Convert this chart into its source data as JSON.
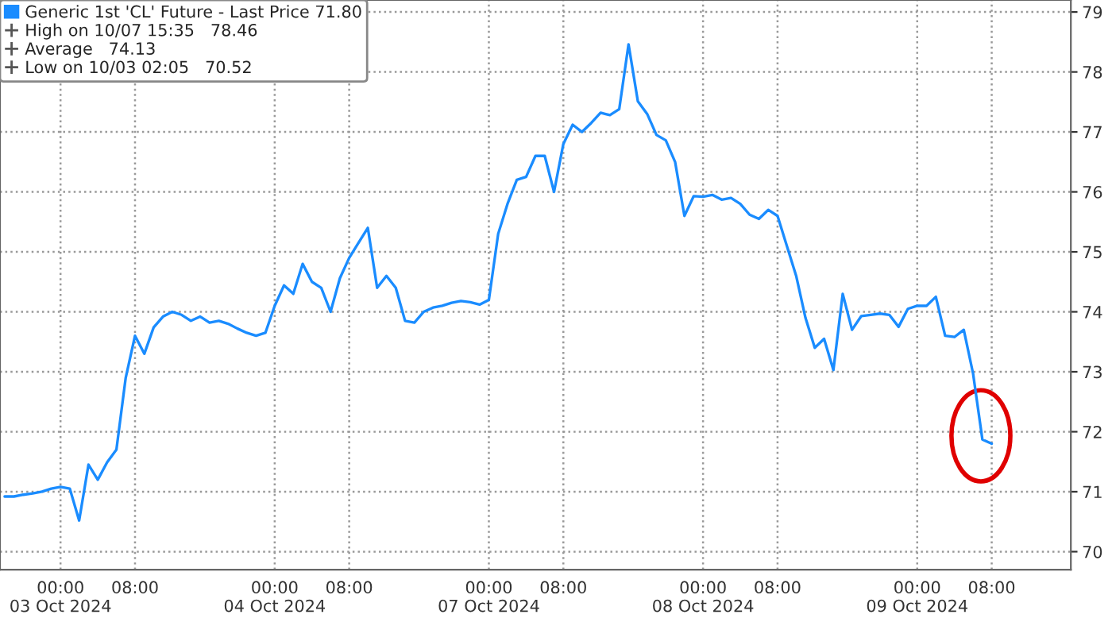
{
  "chart_data": {
    "type": "line",
    "categories": [
      null,
      null,
      null,
      null,
      null,
      null,
      "00:00\n03 Oct 2024",
      null,
      null,
      null,
      null,
      null,
      null,
      null,
      "08:00",
      null,
      null,
      null,
      null,
      null,
      null,
      null,
      null,
      null,
      null,
      null,
      null,
      null,
      null,
      "00:00\n04 Oct 2024",
      null,
      null,
      null,
      null,
      null,
      null,
      null,
      "08:00",
      null,
      null,
      null,
      null,
      null,
      null,
      null,
      null,
      null,
      null,
      null,
      null,
      null,
      null,
      "00:00\n07 Oct 2024",
      null,
      null,
      null,
      null,
      null,
      null,
      null,
      "08:00",
      null,
      null,
      null,
      null,
      null,
      null,
      null,
      null,
      null,
      null,
      null,
      null,
      null,
      null,
      "00:00\n08 Oct 2024",
      null,
      null,
      null,
      null,
      null,
      null,
      null,
      "08:00",
      null,
      null,
      null,
      null,
      null,
      null,
      null,
      null,
      null,
      null,
      null,
      null,
      null,
      null,
      "00:00\n09 Oct 2024",
      null,
      null,
      null,
      null,
      null,
      null,
      null,
      "08:00",
      null,
      null,
      null,
      null,
      null,
      null,
      null,
      null
    ],
    "series": [
      {
        "name": "Generic 1st 'CL' Future - Last Price 71.80",
        "color": "#1a8cff",
        "values": [
          70.92,
          70.92,
          70.95,
          70.97,
          71.0,
          71.05,
          71.08,
          71.05,
          70.52,
          71.45,
          71.2,
          71.49,
          71.7,
          72.9,
          73.6,
          73.3,
          73.74,
          73.92,
          74.0,
          73.95,
          73.85,
          73.92,
          73.82,
          73.85,
          73.8,
          73.72,
          73.65,
          73.6,
          73.65,
          74.1,
          74.44,
          74.3,
          74.8,
          74.5,
          74.4,
          74.0,
          74.56,
          74.9,
          75.15,
          75.4,
          74.4,
          74.6,
          74.4,
          73.85,
          73.82,
          74.0,
          74.07,
          74.1,
          74.15,
          74.18,
          74.16,
          74.12,
          74.2,
          75.3,
          75.8,
          76.2,
          76.25,
          76.6,
          76.6,
          76.0,
          76.8,
          77.12,
          77.0,
          77.15,
          77.32,
          77.28,
          77.38,
          78.46,
          77.51,
          77.3,
          76.95,
          76.86,
          76.5,
          75.6,
          75.93,
          75.92,
          75.95,
          75.87,
          75.9,
          75.8,
          75.62,
          75.55,
          75.7,
          75.6,
          75.1,
          74.6,
          73.9,
          73.4,
          73.55,
          73.03,
          74.3,
          73.7,
          73.93,
          73.95,
          73.97,
          73.95,
          73.75,
          74.05,
          74.1,
          74.1,
          74.25,
          73.6,
          73.58,
          73.7,
          72.97,
          71.87,
          71.8,
          null,
          null,
          null,
          null,
          null,
          null,
          null,
          null
        ]
      }
    ],
    "annotations": [
      "High on 10/07 15:35   78.46",
      "Average   74.13",
      "Low on 10/03 02:05   70.52"
    ],
    "ylim": [
      69.7,
      79.2
    ],
    "yticks": [
      70,
      71,
      72,
      73,
      74,
      75,
      76,
      77,
      78,
      79
    ],
    "grid": true,
    "legend": "top left",
    "line_style": "solid"
  }
}
